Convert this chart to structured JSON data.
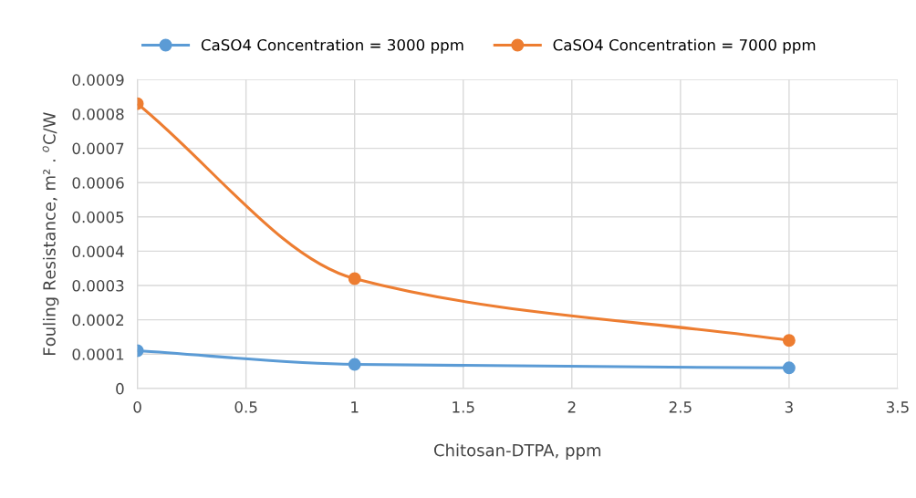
{
  "chart_data": {
    "type": "line",
    "xlabel": "Chitosan-DTPA, ppm",
    "ylabel": "Fouling Resistance, m² . $^{o}$C/W",
    "x": [
      0,
      1,
      3
    ],
    "series": [
      {
        "name": "CaSO4 Concentration = 3000 ppm",
        "color": "#5b9bd5",
        "values": [
          0.00011,
          7e-05,
          6e-05
        ]
      },
      {
        "name": "CaSO4 Concentration = 7000 ppm",
        "color": "#ed7d31",
        "values": [
          0.00083,
          0.00032,
          0.00014
        ]
      }
    ],
    "xlim": [
      0,
      3.5
    ],
    "xticks": [
      0,
      0.5,
      1,
      1.5,
      2,
      2.5,
      3,
      3.5
    ],
    "ylim": [
      0,
      0.0009
    ],
    "yticks": [
      0,
      0.0001,
      0.0002,
      0.0003,
      0.0004,
      0.0005,
      0.0006,
      0.0007,
      0.0008,
      0.0009
    ],
    "grid": true,
    "legend": "top",
    "marker": "circle",
    "line_style": "solid"
  }
}
